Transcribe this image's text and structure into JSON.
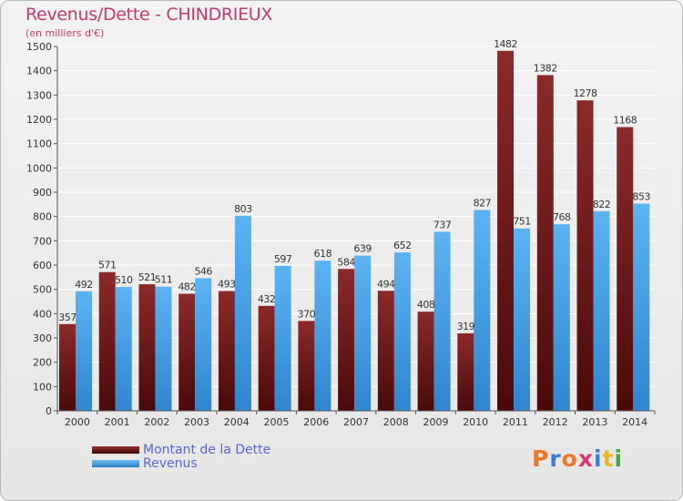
{
  "chart_data": {
    "type": "bar",
    "title": "Revenus/Dette - CHINDRIEUX",
    "subtitle": "(en milliers d'€)",
    "categories": [
      "2000",
      "2001",
      "2002",
      "2003",
      "2004",
      "2005",
      "2006",
      "2007",
      "2008",
      "2009",
      "2010",
      "2011",
      "2012",
      "2013",
      "2014"
    ],
    "series": [
      {
        "name": "Montant de la Dette",
        "color": "#7a1c1c",
        "values": [
          357,
          571,
          521,
          482,
          493,
          432,
          370,
          584,
          494,
          408,
          319,
          1482,
          1382,
          1278,
          1168
        ]
      },
      {
        "name": "Revenus",
        "color": "#4aa3e8",
        "values": [
          492,
          510,
          511,
          546,
          803,
          597,
          618,
          639,
          652,
          737,
          827,
          751,
          768,
          822,
          853
        ]
      }
    ],
    "ylim": [
      0,
      1500
    ],
    "yticks": [
      0,
      100,
      200,
      300,
      400,
      500,
      600,
      700,
      800,
      900,
      1000,
      1100,
      1200,
      1300,
      1400,
      1500
    ],
    "grid": true,
    "legend": "bottom-left"
  },
  "brand": {
    "text": "Proxiti",
    "colors": [
      "#e8782a",
      "#3a7fd5",
      "#e8782a",
      "#d63b6e",
      "#3a7fd5",
      "#e8b42a",
      "#4aa34a"
    ]
  }
}
